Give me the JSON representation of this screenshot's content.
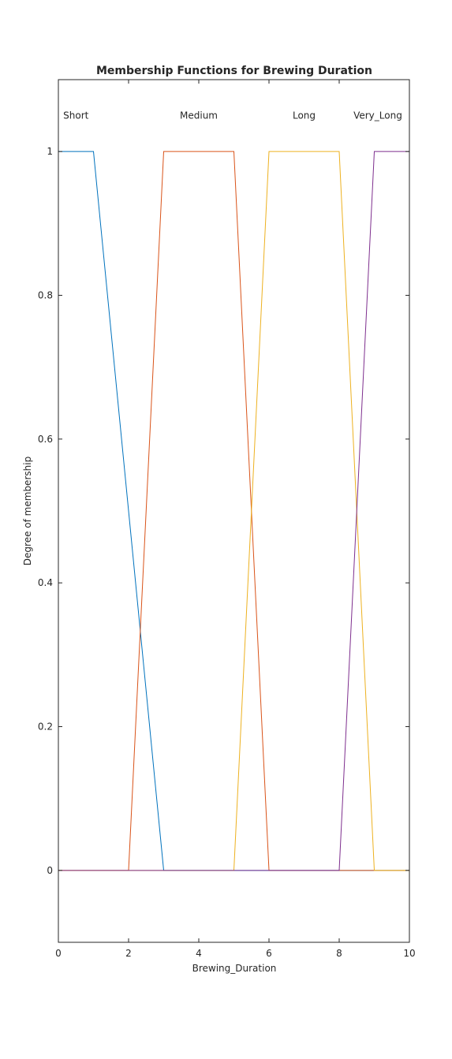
{
  "chart_data": {
    "type": "line",
    "title": "Membership Functions for Brewing Duration",
    "xlabel": "Brewing_Duration",
    "ylabel": "Degree of membership",
    "xlim": [
      0,
      10
    ],
    "ylim": [
      -0.1,
      1.1
    ],
    "xticks": [
      0,
      2,
      4,
      6,
      8,
      10
    ],
    "xtick_labels": [
      "0",
      "2",
      "4",
      "6",
      "8",
      "10"
    ],
    "yticks": [
      0,
      0.2,
      0.4,
      0.6,
      0.8,
      1
    ],
    "ytick_labels": [
      "0",
      "0.2",
      "0.4",
      "0.6",
      "0.8",
      "1"
    ],
    "grid": false,
    "series": [
      {
        "name": "Short",
        "color": "#0072BD",
        "x": [
          0,
          1,
          3,
          10
        ],
        "y": [
          1,
          1,
          0,
          0
        ],
        "label_at": [
          0.5,
          1.05
        ]
      },
      {
        "name": "Medium",
        "color": "#D95319",
        "x": [
          0,
          2,
          3,
          5,
          6,
          10
        ],
        "y": [
          0,
          0,
          1,
          1,
          0,
          0
        ],
        "label_at": [
          4,
          1.05
        ]
      },
      {
        "name": "Long",
        "color": "#EDB120",
        "x": [
          0,
          5,
          6,
          8,
          9,
          10
        ],
        "y": [
          0,
          0,
          1,
          1,
          0,
          0
        ],
        "label_at": [
          7,
          1.05
        ]
      },
      {
        "name": "Very_Long",
        "color": "#7E2F8E",
        "x": [
          0,
          8,
          9,
          10
        ],
        "y": [
          0,
          0,
          1,
          1
        ],
        "label_at": [
          9.1,
          1.05
        ]
      }
    ]
  }
}
